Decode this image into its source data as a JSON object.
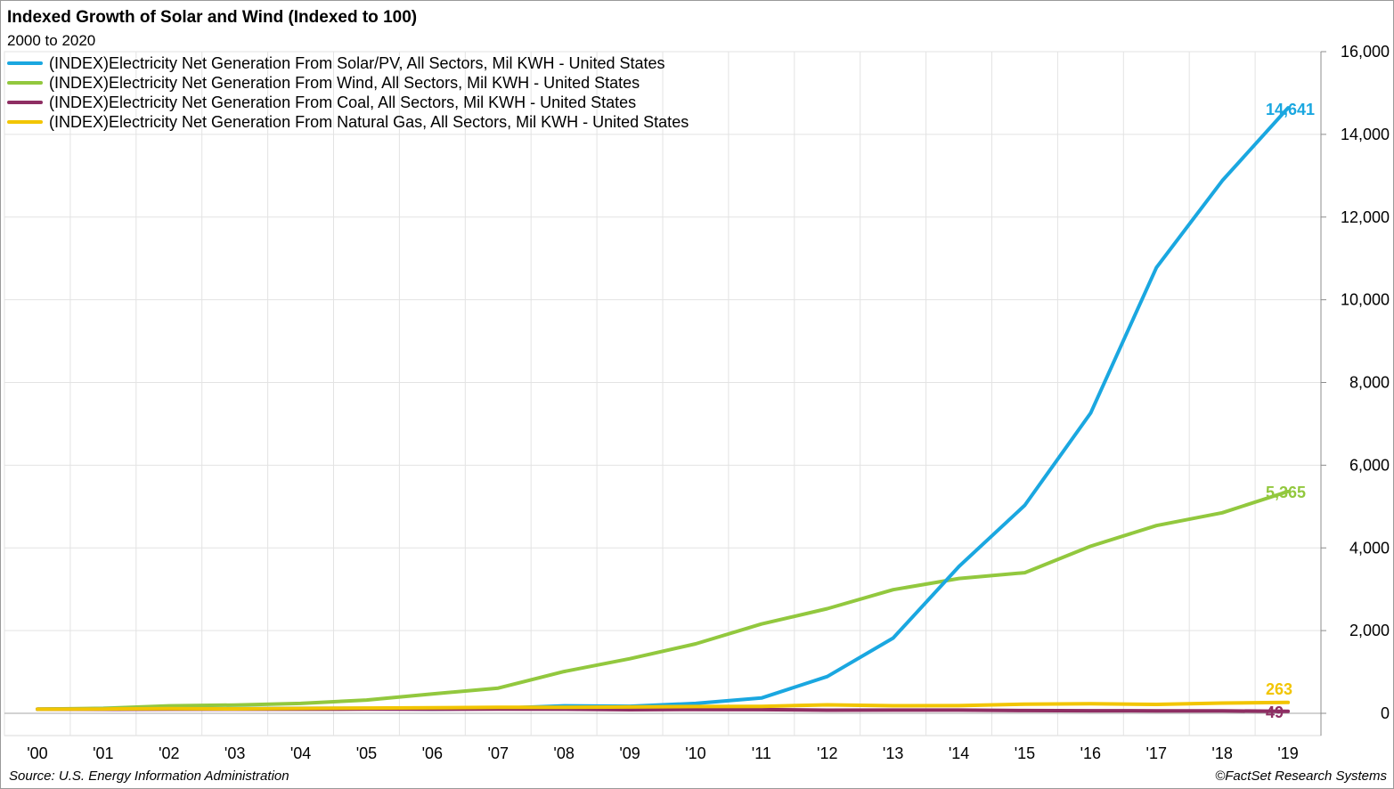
{
  "chart_data": {
    "type": "line",
    "title": "Indexed Growth of Solar and Wind (Indexed to 100)",
    "subtitle": "2000 to 2020",
    "categories": [
      "'00",
      "'01",
      "'02",
      "'03",
      "'04",
      "'05",
      "'06",
      "'07",
      "'08",
      "'09",
      "'10",
      "'11",
      "'12",
      "'13",
      "'14",
      "'15",
      "'16",
      "'17",
      "'18",
      "'19"
    ],
    "ylim": [
      -500,
      16000
    ],
    "yticks": [
      0,
      2000,
      4000,
      6000,
      8000,
      10000,
      12000,
      14000,
      16000
    ],
    "ytick_labels": [
      "0",
      "2,000",
      "4,000",
      "6,000",
      "8,000",
      "10,000",
      "12,000",
      "14,000",
      "16,000"
    ],
    "grid": true,
    "legend_position": "top-left",
    "series": [
      {
        "name": "(INDEX)Electricity Net Generation From Solar/PV, All Sectors, Mil KWH - United States",
        "color": "#1aa7e0",
        "values": [
          100,
          110,
          110,
          110,
          120,
          120,
          100,
          120,
          180,
          170,
          240,
          370,
          890,
          1820,
          3550,
          5030,
          7260,
          10780,
          12880,
          14641
        ],
        "end_label": "14,641"
      },
      {
        "name": "(INDEX)Electricity Net Generation From Wind, All Sectors, Mil KWH - United States",
        "color": "#92c83e",
        "values": [
          100,
          120,
          180,
          200,
          240,
          320,
          470,
          610,
          1010,
          1320,
          1680,
          2160,
          2530,
          2990,
          3260,
          3400,
          4040,
          4540,
          4850,
          5365
        ],
        "end_label": "5,365"
      },
      {
        "name": "(INDEX)Electricity Net Generation From Coal, All Sectors, Mil KWH - United States",
        "color": "#8e2e63",
        "values": [
          100,
          96,
          98,
          100,
          100,
          102,
          100,
          101,
          98,
          86,
          92,
          88,
          75,
          78,
          77,
          67,
          62,
          61,
          58,
          49
        ],
        "end_label": "49"
      },
      {
        "name": "(INDEX)Electricity Net Generation From Natural Gas, All Sectors, Mil KWH - United States",
        "color": "#f2c500",
        "values": [
          100,
          105,
          114,
          107,
          118,
          127,
          134,
          146,
          146,
          153,
          164,
          168,
          205,
          184,
          186,
          222,
          230,
          215,
          248,
          263
        ],
        "end_label": "263"
      }
    ]
  },
  "footer": {
    "source": "Source: U.S. Energy Information Administration",
    "copyright": "©FactSet Research Systems"
  }
}
